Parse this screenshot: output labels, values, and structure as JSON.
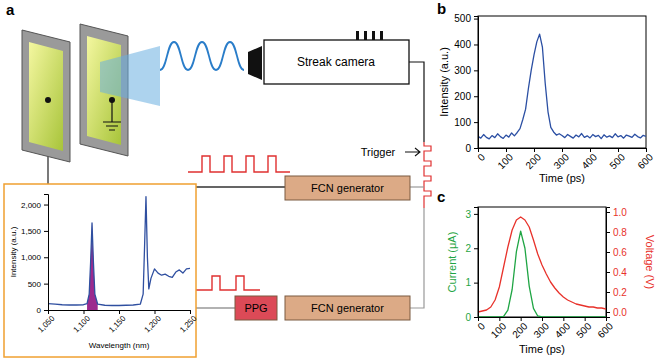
{
  "diagram": {
    "panel_label": "a",
    "nodes": [
      {
        "label": "Streak camera"
      },
      {
        "label": "FCN generator"
      },
      {
        "label": "PPG"
      },
      {
        "label": "FCN generator"
      }
    ],
    "labels": [
      "Trigger"
    ]
  },
  "chart_data": [
    {
      "type": "line",
      "xlabel": "Wavelength (nm)",
      "ylabel": "Intensity (a.u.)",
      "xlim": [
        1050,
        1250
      ],
      "ylim": [
        0,
        2200
      ],
      "xticks": [
        {
          "value": 1050,
          "label": "1,050"
        },
        {
          "value": 1100,
          "label": "1,100"
        },
        {
          "value": 1150,
          "label": "1,150"
        },
        {
          "value": 1200,
          "label": "1,200"
        },
        {
          "value": 1250,
          "label": "1,250"
        }
      ],
      "yticks": [
        0,
        500,
        {
          "value": 1000,
          "label": "1,000"
        },
        {
          "value": 1500,
          "label": "1,500"
        },
        {
          "value": 2000,
          "label": "2,000"
        }
      ],
      "series": [
        {
          "type": "area",
          "color": "#9c2a8e",
          "x": [
            1105,
            1108,
            1110,
            1112,
            1114,
            1116,
            1120
          ],
          "values": [
            120,
            300,
            900,
            1650,
            900,
            300,
            110
          ]
        },
        {
          "type": "line",
          "color": "#2f4fa0",
          "x": [
            1050,
            1060,
            1070,
            1080,
            1090,
            1100,
            1105,
            1108,
            1110,
            1112,
            1114,
            1116,
            1120,
            1130,
            1140,
            1150,
            1160,
            1170,
            1180,
            1184,
            1186,
            1188,
            1190,
            1192,
            1195,
            1200,
            1205,
            1210,
            1215,
            1220,
            1225,
            1230,
            1235,
            1240,
            1245,
            1250
          ],
          "values": [
            120,
            110,
            100,
            95,
            95,
            100,
            120,
            300,
            900,
            1650,
            900,
            300,
            110,
            90,
            85,
            85,
            90,
            95,
            110,
            300,
            1200,
            2150,
            1000,
            400,
            600,
            780,
            700,
            660,
            680,
            640,
            620,
            720,
            760,
            700,
            780,
            790
          ]
        }
      ]
    },
    {
      "type": "line",
      "panel_label": "b",
      "xlabel": "Time (ps)",
      "ylabel": "Intensity (a.u.)",
      "xlim": [
        0,
        600
      ],
      "ylim": [
        0,
        510
      ],
      "xticks": [
        0,
        100,
        200,
        300,
        400,
        500,
        600
      ],
      "yticks": [
        0,
        100,
        200,
        300,
        400,
        500
      ],
      "x": [
        0,
        10,
        20,
        30,
        40,
        50,
        60,
        70,
        80,
        90,
        100,
        110,
        120,
        130,
        140,
        150,
        160,
        170,
        180,
        190,
        200,
        210,
        220,
        230,
        240,
        250,
        260,
        270,
        280,
        290,
        300,
        310,
        320,
        330,
        340,
        350,
        360,
        370,
        380,
        390,
        400,
        410,
        420,
        430,
        440,
        450,
        460,
        470,
        480,
        490,
        500,
        510,
        520,
        530,
        540,
        550,
        560,
        570,
        580,
        590,
        600
      ],
      "series": [
        {
          "color": "#2b4fa3",
          "values": [
            45,
            38,
            52,
            41,
            35,
            48,
            40,
            55,
            44,
            37,
            50,
            42,
            58,
            47,
            60,
            75,
            110,
            150,
            230,
            300,
            360,
            410,
            440,
            390,
            250,
            140,
            80,
            62,
            50,
            55,
            48,
            40,
            52,
            45,
            38,
            50,
            43,
            56,
            41,
            47,
            39,
            52,
            44,
            49,
            36,
            51,
            42,
            47,
            40,
            55,
            43,
            48,
            38,
            50,
            46,
            41,
            53,
            44,
            39,
            49,
            45
          ]
        }
      ]
    },
    {
      "type": "line",
      "panel_label": "c",
      "xlabel": "Time (ps)",
      "ylabel": "Current (μA)",
      "y2label": "Voltage (V)",
      "xlim": [
        0,
        600
      ],
      "ylim": [
        0,
        3.2
      ],
      "y2lim": [
        -0.05,
        1.05
      ],
      "xticks": [
        0,
        100,
        200,
        300,
        400,
        500,
        600
      ],
      "yticks": [
        0,
        1,
        2,
        3
      ],
      "y2ticks": [
        {
          "value": 0,
          "label": "0.0"
        },
        {
          "value": 0.2,
          "label": "0.2"
        },
        {
          "value": 0.4,
          "label": "0.4"
        },
        {
          "value": 0.6,
          "label": "0.6"
        },
        {
          "value": 0.8,
          "label": "0.8"
        },
        {
          "value": 1,
          "label": "1.0"
        }
      ],
      "x": [
        0,
        20,
        40,
        60,
        80,
        100,
        120,
        140,
        160,
        180,
        200,
        220,
        240,
        260,
        280,
        300,
        320,
        340,
        360,
        380,
        400,
        420,
        440,
        460,
        480,
        500,
        520,
        540,
        560,
        580,
        600
      ],
      "series": [
        {
          "color": "#1fa544",
          "values": [
            0,
            0,
            0,
            0,
            0,
            0,
            0.02,
            0.2,
            0.8,
            1.9,
            2.5,
            2.0,
            0.9,
            0.25,
            0.03,
            0,
            0,
            0,
            0,
            0,
            0,
            0,
            0,
            0,
            0,
            0,
            0,
            0,
            0,
            0,
            0
          ]
        },
        {
          "color": "#e8322b",
          "axis": "y2",
          "values": [
            0.0,
            0.01,
            0.02,
            0.05,
            0.12,
            0.25,
            0.45,
            0.65,
            0.82,
            0.92,
            0.95,
            0.92,
            0.85,
            0.72,
            0.58,
            0.47,
            0.38,
            0.3,
            0.24,
            0.19,
            0.15,
            0.12,
            0.1,
            0.08,
            0.07,
            0.06,
            0.05,
            0.05,
            0.04,
            0.04,
            0.03
          ]
        }
      ]
    }
  ]
}
